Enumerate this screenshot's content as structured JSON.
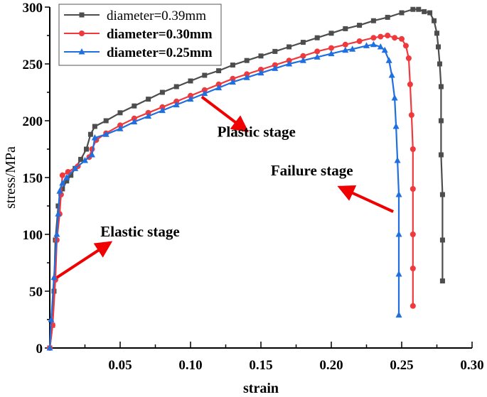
{
  "chart_data": {
    "type": "line",
    "title": "",
    "xlabel": "strain",
    "ylabel": "stress/MPa",
    "xlim": [
      0,
      0.3
    ],
    "ylim": [
      0,
      300
    ],
    "x_ticks": [
      "0.05",
      "0.10",
      "0.15",
      "0.20",
      "0.25",
      "0.30"
    ],
    "y_ticks": [
      "0",
      "50",
      "100",
      "150",
      "200",
      "250",
      "300"
    ],
    "grid": false,
    "legend_position": "upper left",
    "series": [
      {
        "name": "diameter=0.39mm",
        "color": "#4d4d4d",
        "marker": "square",
        "bold_label": false,
        "points": [
          [
            0.0,
            0
          ],
          [
            0.002,
            20
          ],
          [
            0.003,
            50
          ],
          [
            0.004,
            95
          ],
          [
            0.006,
            125
          ],
          [
            0.009,
            140
          ],
          [
            0.012,
            147
          ],
          [
            0.015,
            152
          ],
          [
            0.018,
            158
          ],
          [
            0.022,
            166
          ],
          [
            0.026,
            175
          ],
          [
            0.029,
            188
          ],
          [
            0.032,
            195
          ],
          [
            0.04,
            200
          ],
          [
            0.05,
            207
          ],
          [
            0.06,
            213
          ],
          [
            0.07,
            219
          ],
          [
            0.08,
            225
          ],
          [
            0.09,
            230
          ],
          [
            0.1,
            235
          ],
          [
            0.11,
            240
          ],
          [
            0.12,
            244
          ],
          [
            0.13,
            249
          ],
          [
            0.14,
            253
          ],
          [
            0.15,
            257
          ],
          [
            0.16,
            261
          ],
          [
            0.17,
            265
          ],
          [
            0.18,
            269
          ],
          [
            0.19,
            273
          ],
          [
            0.2,
            277
          ],
          [
            0.21,
            281
          ],
          [
            0.22,
            284
          ],
          [
            0.23,
            288
          ],
          [
            0.24,
            291
          ],
          [
            0.25,
            295
          ],
          [
            0.258,
            298
          ],
          [
            0.262,
            298
          ],
          [
            0.266,
            296
          ],
          [
            0.27,
            295
          ],
          [
            0.273,
            288
          ],
          [
            0.275,
            277
          ],
          [
            0.276,
            265
          ],
          [
            0.277,
            250
          ],
          [
            0.278,
            230
          ],
          [
            0.278,
            200
          ],
          [
            0.278,
            170
          ],
          [
            0.279,
            135
          ],
          [
            0.279,
            95
          ],
          [
            0.279,
            59
          ]
        ]
      },
      {
        "name": "diameter=0.30mm",
        "color": "#f0393c",
        "marker": "circle",
        "bold_label": true,
        "points": [
          [
            0.0,
            0
          ],
          [
            0.002,
            20
          ],
          [
            0.004,
            60
          ],
          [
            0.005,
            95
          ],
          [
            0.007,
            118
          ],
          [
            0.008,
            135
          ],
          [
            0.009,
            152
          ],
          [
            0.013,
            155
          ],
          [
            0.02,
            160
          ],
          [
            0.028,
            168
          ],
          [
            0.03,
            175
          ],
          [
            0.033,
            183
          ],
          [
            0.04,
            189
          ],
          [
            0.05,
            196
          ],
          [
            0.06,
            202
          ],
          [
            0.07,
            207
          ],
          [
            0.08,
            212
          ],
          [
            0.09,
            217
          ],
          [
            0.1,
            222
          ],
          [
            0.11,
            227
          ],
          [
            0.12,
            232
          ],
          [
            0.13,
            237
          ],
          [
            0.14,
            241
          ],
          [
            0.15,
            245
          ],
          [
            0.16,
            249
          ],
          [
            0.17,
            253
          ],
          [
            0.18,
            257
          ],
          [
            0.19,
            261
          ],
          [
            0.2,
            264
          ],
          [
            0.21,
            267
          ],
          [
            0.22,
            270
          ],
          [
            0.23,
            273
          ],
          [
            0.235,
            274
          ],
          [
            0.24,
            275
          ],
          [
            0.245,
            273
          ],
          [
            0.25,
            272
          ],
          [
            0.253,
            266
          ],
          [
            0.255,
            255
          ],
          [
            0.256,
            232
          ],
          [
            0.257,
            205
          ],
          [
            0.258,
            175
          ],
          [
            0.258,
            140
          ],
          [
            0.258,
            100
          ],
          [
            0.258,
            70
          ],
          [
            0.258,
            37
          ]
        ]
      },
      {
        "name": "diameter=0.25mm",
        "color": "#1f6fe0",
        "marker": "triangle",
        "bold_label": true,
        "points": [
          [
            0.0,
            0
          ],
          [
            0.001,
            25
          ],
          [
            0.003,
            62
          ],
          [
            0.005,
            100
          ],
          [
            0.006,
            118
          ],
          [
            0.007,
            138
          ],
          [
            0.009,
            145
          ],
          [
            0.012,
            150
          ],
          [
            0.018,
            158
          ],
          [
            0.025,
            165
          ],
          [
            0.03,
            170
          ],
          [
            0.032,
            185
          ],
          [
            0.04,
            188
          ],
          [
            0.05,
            193
          ],
          [
            0.06,
            199
          ],
          [
            0.07,
            204
          ],
          [
            0.08,
            209
          ],
          [
            0.09,
            214
          ],
          [
            0.1,
            219
          ],
          [
            0.11,
            224
          ],
          [
            0.12,
            229
          ],
          [
            0.13,
            234
          ],
          [
            0.14,
            238
          ],
          [
            0.15,
            242
          ],
          [
            0.16,
            246
          ],
          [
            0.17,
            250
          ],
          [
            0.18,
            253
          ],
          [
            0.19,
            256
          ],
          [
            0.2,
            259
          ],
          [
            0.21,
            262
          ],
          [
            0.215,
            263
          ],
          [
            0.225,
            266
          ],
          [
            0.23,
            267
          ],
          [
            0.235,
            265
          ],
          [
            0.238,
            262
          ],
          [
            0.241,
            253
          ],
          [
            0.243,
            240
          ],
          [
            0.245,
            220
          ],
          [
            0.246,
            195
          ],
          [
            0.247,
            165
          ],
          [
            0.248,
            135
          ],
          [
            0.248,
            100
          ],
          [
            0.248,
            65
          ],
          [
            0.248,
            29
          ]
        ]
      }
    ],
    "annotations": [
      {
        "text": "Elastic stage",
        "x": 0.036,
        "y": 98,
        "arrow_from": [
          0.005,
          62
        ],
        "arrow_to": [
          0.042,
          92
        ]
      },
      {
        "text": "Plastic stage",
        "x": 0.119,
        "y": 186,
        "arrow_from": [
          0.108,
          221
        ],
        "arrow_to": [
          0.139,
          192
        ]
      },
      {
        "text": "Failure stage",
        "x": 0.157,
        "y": 152,
        "arrow_from": [
          0.244,
          120
        ],
        "arrow_to": [
          0.207,
          141
        ]
      }
    ]
  }
}
